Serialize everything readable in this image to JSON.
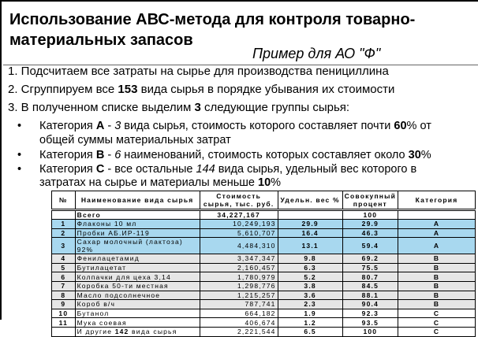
{
  "title": "Использование АВС-метода для контроля товарно-материальных  запасов",
  "subtitle": "Пример для АО \"Ф\"",
  "steps": [
    {
      "pre": "1. Подсчитаем все затраты на сырье для производства пенициллина"
    },
    {
      "pre": "2. Сгруппируем все ",
      "bold": "153",
      "post": " вида сырья в порядке убывания их стоимости"
    },
    {
      "pre": "3. В полученном списке выделим ",
      "bold": "3",
      "post": " следующие группы сырья:"
    }
  ],
  "bullets": [
    {
      "l1a": "Категория ",
      "l1b": "А",
      "l1c": " - ",
      "l1d": "3",
      "l1e": " вида сырья, стоимость которого составляет почти  ",
      "l1f": "60",
      "l1g": "% от",
      "l2": "общей суммы материальных затрат"
    },
    {
      "l1a": "Категория ",
      "l1b": "В",
      "l1c": " - ",
      "l1d": "6",
      "l1e": " наименований, стоимость которых составляет около  ",
      "l1f": "30",
      "l1g": "%"
    },
    {
      "l1a": "Категория ",
      "l1b": "С",
      "l1c": " - все остальные ",
      "l1d": "144",
      "l1e": " вида сырья, удельный вес которого в",
      "l2a": "затратах на сырье и материалы меньше ",
      "l2b": "10",
      "l2c": "%"
    }
  ],
  "table": {
    "headers": [
      "№",
      "Наименование вида сырья",
      "Стоимость сырья, тыс. руб.",
      "Удельн. вес %",
      "Совокупный процент",
      "Категория"
    ],
    "total": {
      "name": "Всего",
      "cost": "34,227,167",
      "cum": "100"
    },
    "rows": [
      [
        "1",
        "Флаконы 10 мл",
        "10,249,193",
        "29.9",
        "29.9",
        "A"
      ],
      [
        "2",
        "Пробки АБ.ИР-119",
        "5,610,707",
        "16.4",
        "46.3",
        "A"
      ],
      [
        "3",
        "Сахар молочный (лактоза) 92%",
        "4,484,310",
        "13.1",
        "59.4",
        "A"
      ],
      [
        "4",
        "Фенилацетамид",
        "3,347,347",
        "9.8",
        "69.2",
        "B"
      ],
      [
        "5",
        "Бутилацетат",
        "2,160,457",
        "6.3",
        "75.5",
        "B"
      ],
      [
        "6",
        "Колпачки для цеха 3,14",
        "1,780,979",
        "5.2",
        "80.7",
        "B"
      ],
      [
        "7",
        "Коробка 50-ти местная",
        "1,298,776",
        "3.8",
        "84.5",
        "B"
      ],
      [
        "8",
        "Масло подсолнечное",
        "1,215,257",
        "3.6",
        "88.1",
        "B"
      ],
      [
        "9",
        "Короб в/ч",
        "787,741",
        "2.3",
        "90.4",
        "B"
      ],
      [
        "10",
        "Бутанол",
        "664,182",
        "1.9",
        "92.3",
        "C"
      ],
      [
        "11",
        "Мука соевая",
        "406,674",
        "1.2",
        "93.5",
        "C"
      ]
    ],
    "others": {
      "pre": "И другие ",
      "bold": "142",
      "post": " вида сырья",
      "cost": "2,221,544",
      "share": "6.5",
      "cum": "100",
      "cat": "C"
    }
  },
  "colors": {
    "category_a_row": "#a8d8ef",
    "category_b_row": "#e6e6e6"
  }
}
